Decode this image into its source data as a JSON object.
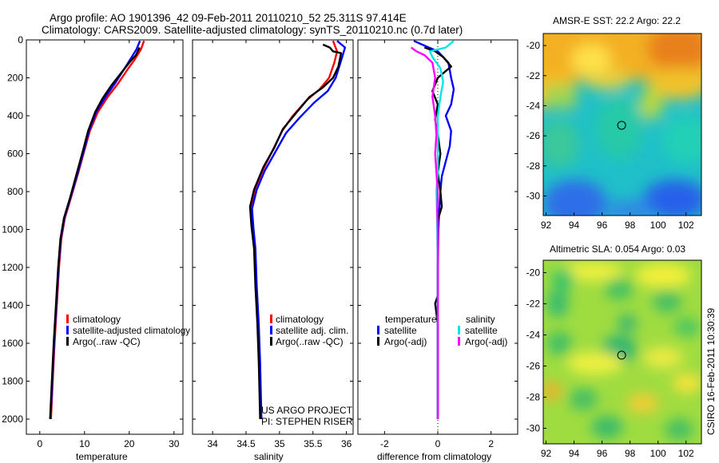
{
  "title_line1": "Argo profile: AO 1901396_42 09-Feb-2011 20110210_52 25.311S 97.414E",
  "title_line2": "Climatology: CARS2009. Satellite-adjusted climatology: synTS_20110210.nc (0.7d later)",
  "side_stamp": "CSIRO 16-Feb-2011 10:30:39",
  "project_line1": "US ARGO PROJECT",
  "project_line2": "PI: STEPHEN RISER",
  "colors": {
    "climatology": "#ff0000",
    "satellite": "#0000ff",
    "argo": "#000000",
    "sat_salinity": "#00e5e5",
    "argo_salinity": "#ff00ff"
  },
  "chart_data": [
    {
      "type": "line",
      "name": "temperature-profile",
      "xlabel": "temperature",
      "xlim": [
        -3,
        32
      ],
      "ylim": [
        2080,
        0
      ],
      "xticks": [
        0,
        10,
        20,
        30
      ],
      "yticks": [
        0,
        200,
        400,
        600,
        800,
        1000,
        1200,
        1400,
        1600,
        1800,
        2000
      ],
      "legend": [
        "climatology",
        "satellite-adjusted climatology",
        "Argo(..raw -QC)"
      ],
      "series": [
        {
          "name": "climatology",
          "color": "#ff0000",
          "points": [
            [
              23.3,
              5
            ],
            [
              22.6,
              50
            ],
            [
              21.3,
              100
            ],
            [
              19.5,
              160
            ],
            [
              17.5,
              230
            ],
            [
              15.2,
              300
            ],
            [
              13.0,
              380
            ],
            [
              11.2,
              480
            ],
            [
              10.0,
              580
            ],
            [
              8.6,
              700
            ],
            [
              7.0,
              830
            ],
            [
              5.6,
              940
            ],
            [
              4.8,
              1050
            ],
            [
              4.3,
              1200
            ],
            [
              3.8,
              1400
            ],
            [
              3.3,
              1600
            ],
            [
              2.9,
              1800
            ],
            [
              2.5,
              2000
            ]
          ]
        },
        {
          "name": "satellite-adjusted climatology",
          "color": "#0000ff",
          "points": [
            [
              22.4,
              5
            ],
            [
              21.6,
              50
            ],
            [
              20.3,
              100
            ],
            [
              18.7,
              160
            ],
            [
              16.8,
              230
            ],
            [
              14.7,
              300
            ],
            [
              12.6,
              380
            ],
            [
              11.0,
              480
            ],
            [
              9.9,
              580
            ],
            [
              8.5,
              700
            ],
            [
              6.9,
              830
            ],
            [
              5.5,
              940
            ],
            [
              4.7,
              1050
            ],
            [
              4.2,
              1200
            ],
            [
              3.7,
              1400
            ],
            [
              3.2,
              1600
            ],
            [
              2.8,
              1800
            ],
            [
              2.4,
              2000
            ]
          ]
        },
        {
          "name": "Argo(..raw -QC)",
          "color": "#000000",
          "points": [
            [
              22.3,
              40
            ],
            [
              21.5,
              80
            ],
            [
              20.0,
              120
            ],
            [
              18.0,
              180
            ],
            [
              16.0,
              240
            ],
            [
              14.0,
              310
            ],
            [
              12.4,
              380
            ],
            [
              10.8,
              480
            ],
            [
              9.7,
              580
            ],
            [
              8.3,
              700
            ],
            [
              6.8,
              830
            ],
            [
              5.4,
              940
            ],
            [
              4.6,
              1050
            ],
            [
              4.1,
              1200
            ],
            [
              3.6,
              1400
            ],
            [
              3.1,
              1600
            ],
            [
              2.7,
              1800
            ],
            [
              2.3,
              2000
            ]
          ]
        }
      ]
    },
    {
      "type": "line",
      "name": "salinity-profile",
      "xlabel": "salinity",
      "xlim": [
        33.7,
        36.1
      ],
      "ylim": [
        2080,
        0
      ],
      "xticks": [
        34,
        34.5,
        35,
        35.5,
        36
      ],
      "legend": [
        "climatology",
        "satellite adj. clim.",
        "Argo(..raw -QC)"
      ],
      "series": [
        {
          "name": "climatology",
          "color": "#ff0000",
          "points": [
            [
              35.8,
              5
            ],
            [
              35.86,
              60
            ],
            [
              35.82,
              120
            ],
            [
              35.74,
              200
            ],
            [
              35.6,
              260
            ],
            [
              35.4,
              320
            ],
            [
              35.2,
              400
            ],
            [
              35.04,
              480
            ],
            [
              34.9,
              580
            ],
            [
              34.76,
              680
            ],
            [
              34.64,
              780
            ],
            [
              34.58,
              880
            ],
            [
              34.6,
              980
            ],
            [
              34.63,
              1100
            ],
            [
              34.65,
              1300
            ],
            [
              34.68,
              1500
            ],
            [
              34.7,
              1700
            ],
            [
              34.72,
              2000
            ]
          ]
        },
        {
          "name": "satellite adj. clim.",
          "color": "#0000ff",
          "points": [
            [
              35.86,
              5
            ],
            [
              35.98,
              40
            ],
            [
              35.92,
              110
            ],
            [
              35.84,
              200
            ],
            [
              35.72,
              270
            ],
            [
              35.52,
              330
            ],
            [
              35.3,
              410
            ],
            [
              35.1,
              490
            ],
            [
              34.94,
              590
            ],
            [
              34.78,
              690
            ],
            [
              34.66,
              790
            ],
            [
              34.59,
              890
            ],
            [
              34.61,
              990
            ],
            [
              34.64,
              1100
            ],
            [
              34.66,
              1300
            ],
            [
              34.69,
              1500
            ],
            [
              34.71,
              1700
            ],
            [
              34.73,
              2000
            ]
          ]
        },
        {
          "name": "Argo(..raw -QC)",
          "color": "#000000",
          "points": [
            [
              35.65,
              25
            ],
            [
              35.75,
              40
            ],
            [
              35.8,
              60
            ],
            [
              35.92,
              70
            ],
            [
              35.88,
              140
            ],
            [
              35.8,
              200
            ],
            [
              35.65,
              250
            ],
            [
              35.45,
              300
            ],
            [
              35.26,
              380
            ],
            [
              35.05,
              470
            ],
            [
              34.92,
              570
            ],
            [
              34.76,
              670
            ],
            [
              34.62,
              790
            ],
            [
              34.56,
              880
            ],
            [
              34.58,
              980
            ],
            [
              34.62,
              1100
            ],
            [
              34.64,
              1300
            ],
            [
              34.67,
              1500
            ],
            [
              34.69,
              1700
            ],
            [
              34.71,
              2000
            ]
          ]
        }
      ]
    },
    {
      "type": "line",
      "name": "difference-profile",
      "xlabel": "difference from climatology",
      "xlim": [
        -3,
        3
      ],
      "ylim": [
        2080,
        0
      ],
      "xticks": [
        -2,
        0,
        2
      ],
      "legend_groups": [
        "temperature",
        "salinity"
      ],
      "legend": [
        "satellite",
        "Argo(-adj)",
        "satellite",
        "Argo(-adj)"
      ],
      "series": [
        {
          "name": "temperature satellite",
          "color": "#0000ff",
          "points": [
            [
              -0.9,
              5
            ],
            [
              -0.5,
              30
            ],
            [
              0.0,
              60
            ],
            [
              0.4,
              120
            ],
            [
              0.5,
              200
            ],
            [
              0.6,
              260
            ],
            [
              0.5,
              340
            ],
            [
              0.3,
              400
            ],
            [
              0.5,
              480
            ],
            [
              0.45,
              560
            ],
            [
              0.3,
              640
            ],
            [
              0.15,
              720
            ],
            [
              0.1,
              800
            ],
            [
              0.05,
              900
            ],
            [
              0.02,
              1000
            ],
            [
              0.0,
              1200
            ],
            [
              0.0,
              1500
            ],
            [
              0.0,
              2000
            ]
          ]
        },
        {
          "name": "temperature Argo(-adj)",
          "color": "#000000",
          "points": [
            [
              -0.5,
              40
            ],
            [
              -0.1,
              60
            ],
            [
              0.2,
              90
            ],
            [
              0.5,
              140
            ],
            [
              0.0,
              200
            ],
            [
              -0.2,
              270
            ],
            [
              0.0,
              340
            ],
            [
              -0.1,
              420
            ],
            [
              0.0,
              500
            ],
            [
              0.1,
              600
            ],
            [
              0.0,
              700
            ],
            [
              0.1,
              800
            ],
            [
              0.15,
              880
            ],
            [
              0.0,
              950
            ],
            [
              0.0,
              1100
            ],
            [
              0.0,
              1350
            ],
            [
              -0.1,
              1390
            ],
            [
              0.0,
              1500
            ],
            [
              0.0,
              2000
            ]
          ]
        },
        {
          "name": "salinity satellite",
          "color": "#00e5e5",
          "points": [
            [
              0.6,
              5
            ],
            [
              0.3,
              40
            ],
            [
              -0.3,
              60
            ],
            [
              -0.2,
              90
            ],
            [
              0.1,
              150
            ],
            [
              0.2,
              220
            ],
            [
              0.1,
              300
            ],
            [
              0.0,
              400
            ],
            [
              0.0,
              500
            ],
            [
              0.0,
              600
            ],
            [
              0.0,
              700
            ],
            [
              -0.05,
              800
            ],
            [
              -0.03,
              900
            ],
            [
              -0.02,
              1000
            ],
            [
              0.0,
              1200
            ],
            [
              0.0,
              1500
            ],
            [
              0.0,
              2000
            ]
          ]
        },
        {
          "name": "salinity Argo(-adj)",
          "color": "#ff00ff",
          "points": [
            [
              -1.0,
              40
            ],
            [
              -0.8,
              60
            ],
            [
              -0.5,
              80
            ],
            [
              -0.2,
              120
            ],
            [
              -0.1,
              200
            ],
            [
              -0.2,
              300
            ],
            [
              -0.1,
              400
            ],
            [
              -0.05,
              500
            ],
            [
              -0.1,
              600
            ],
            [
              -0.05,
              700
            ],
            [
              0.0,
              800
            ],
            [
              -0.02,
              900
            ],
            [
              0.0,
              1000
            ],
            [
              0.0,
              2000
            ]
          ]
        }
      ]
    }
  ],
  "maps": [
    {
      "name": "sst-map",
      "title": "AMSR-E SST: 22.2 Argo: 22.2",
      "xticks": [
        92,
        94,
        96,
        98,
        100,
        102
      ],
      "yticks": [
        -20,
        -22,
        -24,
        -26,
        -28,
        -30
      ],
      "marker": [
        97.4,
        -25.3
      ]
    },
    {
      "name": "sla-map",
      "title": "Altimetric SLA: 0.054 Argo: 0.03",
      "xticks": [
        92,
        94,
        96,
        98,
        100,
        102
      ],
      "yticks": [
        -20,
        -22,
        -24,
        -26,
        -28,
        -30
      ],
      "marker": [
        97.4,
        -25.3
      ]
    }
  ]
}
